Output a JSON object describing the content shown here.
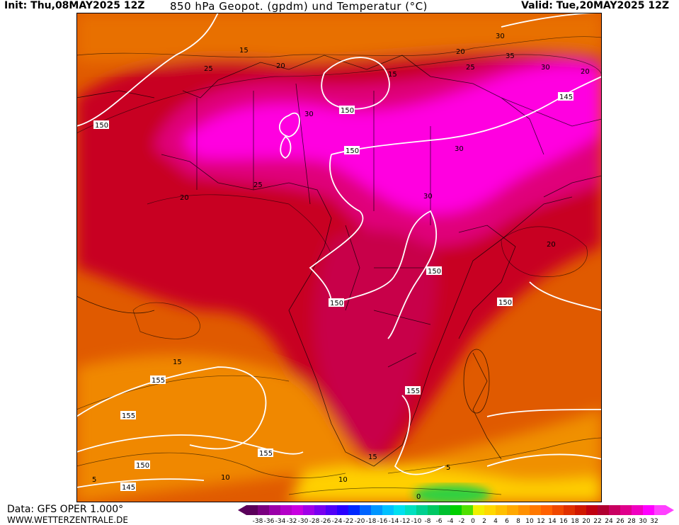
{
  "header": {
    "init": "Init: Thu,08MAY2025 12Z",
    "title": "850 hPa Geopot. (gpdm) und Temperatur (°C)",
    "valid": "Valid: Tue,20MAY2025 12Z"
  },
  "footer": {
    "source": "Data: GFS OPER 1.000°",
    "site": "WWW.WETTERZENTRALE.DE"
  },
  "legend": {
    "ticks": [
      "-38",
      "-36",
      "-34",
      "-32",
      "-30",
      "-28",
      "-26",
      "-24",
      "-22",
      "-20",
      "-18",
      "-16",
      "-14",
      "-12",
      "-10",
      "-8",
      "-6",
      "-4",
      "-2",
      "0",
      "2",
      "4",
      "6",
      "8",
      "10",
      "12",
      "14",
      "16",
      "18",
      "20",
      "22",
      "24",
      "26",
      "28",
      "30",
      "32"
    ],
    "colors": [
      "#5a005a",
      "#7a0080",
      "#9a00a8",
      "#b400c8",
      "#c800e0",
      "#a000e8",
      "#7800f0",
      "#5000f8",
      "#2800ff",
      "#0028ff",
      "#0064ff",
      "#0096ff",
      "#00c0ff",
      "#00e0f0",
      "#00e0c0",
      "#00d090",
      "#00c864",
      "#00c030",
      "#00d000",
      "#50e000",
      "#f0f000",
      "#ffd800",
      "#ffc000",
      "#ffa800",
      "#ff9000",
      "#ff7800",
      "#ff6000",
      "#f04800",
      "#e03000",
      "#d01800",
      "#c00010",
      "#b00030",
      "#c80060",
      "#e0008c",
      "#f000c0",
      "#ff00ff",
      "#ff40ff"
    ]
  },
  "map": {
    "geopotential_labels": [
      "150",
      "150",
      "150",
      "150",
      "155",
      "155",
      "155",
      "155",
      "150",
      "145",
      "145",
      "150",
      "150"
    ],
    "temperature_labels": [
      "15",
      "20",
      "25",
      "30",
      "30",
      "30",
      "30",
      "25",
      "20",
      "15",
      "10",
      "5",
      "0",
      "5",
      "15",
      "20",
      "20",
      "10",
      "15",
      "35",
      "30",
      "25",
      "20"
    ]
  }
}
